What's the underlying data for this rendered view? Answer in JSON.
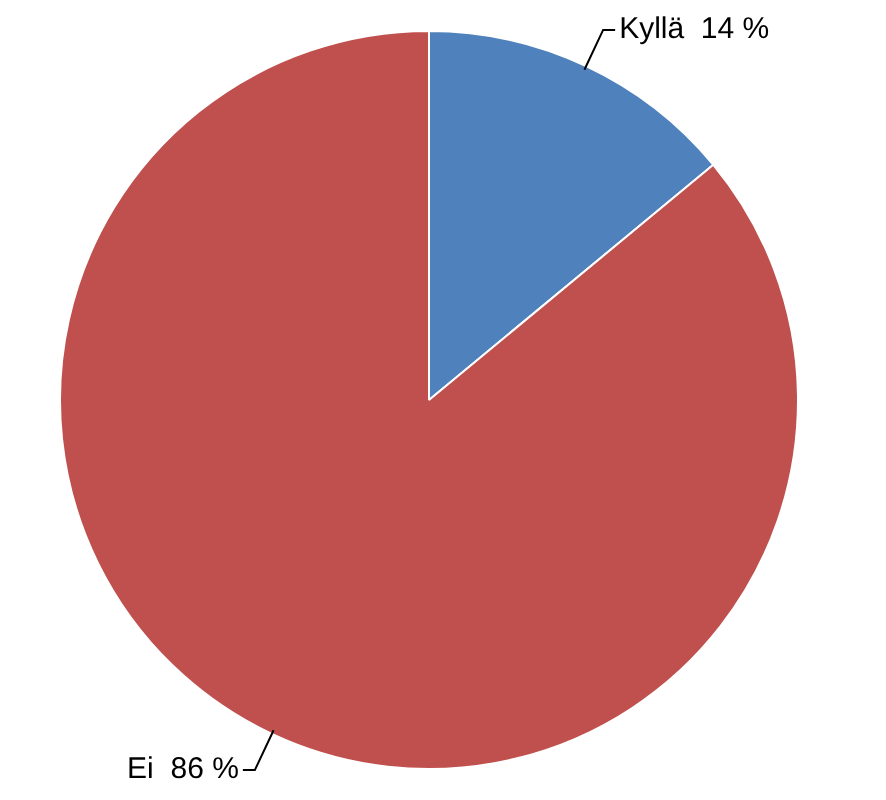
{
  "chart_data": {
    "type": "pie",
    "categories": [
      "Kyllä",
      "Ei"
    ],
    "values": [
      14,
      86
    ],
    "colors": [
      "#4f81bd",
      "#c0504d"
    ],
    "value_labels": [
      "14 %",
      "86 %"
    ],
    "legend": false
  }
}
